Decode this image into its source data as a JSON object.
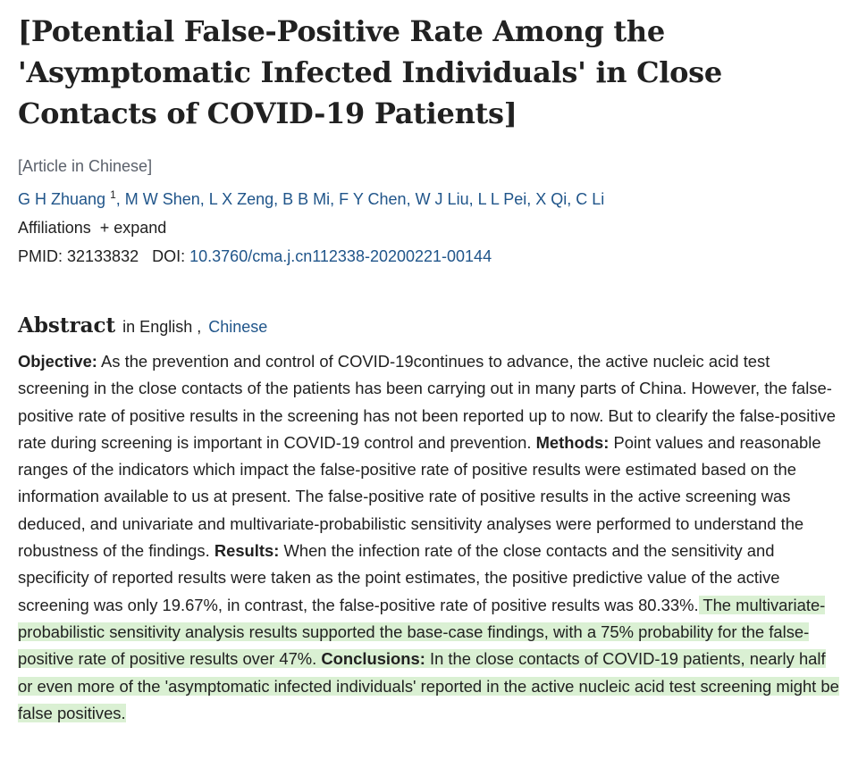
{
  "article": {
    "title": "[Potential False-Positive Rate Among the 'Asymptomatic Infected Individuals' in Close Contacts of COVID-19 Patients]",
    "language_note": "[Article in Chinese]",
    "first_author": "G H Zhuang",
    "first_author_affiliation": "1",
    "other_authors": ", M W Shen, L X Zeng, B B Mi, F Y Chen, W J Liu, L L Pei, X Qi, C Li",
    "affiliations_label": "Affiliations",
    "expand_label": "+ expand",
    "pmid_label": "PMID: 32133832",
    "doi_label": "DOI:",
    "doi": "10.3760/cma.j.cn112338-20200221-00144"
  },
  "abstract": {
    "heading": "Abstract",
    "language_prefix": "in English ,",
    "language_link": "Chinese",
    "objective_label": "Objective:",
    "objective_text": " As the prevention and control of COVID-19continues to advance, the active nucleic acid test screening in the close contacts of the patients has been carrying out in many parts of China. However, the false-positive rate of positive results in the screening has not been reported up to now. But to clearify the false-positive rate during screening is important in COVID-19 control and prevention. ",
    "methods_label": "Methods:",
    "methods_text": " Point values and reasonable ranges of the indicators which impact the false-positive rate of positive results were estimated based on the information available to us at present. The false-positive rate of positive results in the active screening was deduced, and univariate and multivariate-probabilistic sensitivity analyses were performed to understand the robustness of the findings. ",
    "results_label": "Results:",
    "results_text": " When the infection rate of the close contacts and the sensitivity and specificity of reported results were taken as the point estimates, the positive predictive value of the active screening was only 19.67%, in contrast, the false-positive rate of positive results was 80.33%.",
    "results_text_highlighted": " The multivariate-probabilistic sensitivity analysis results supported the base-case findings, with a 75% probability for the false-positive rate of positive results over 47%. ",
    "conclusions_label": "Conclusions:",
    "conclusions_text": " In the close contacts of COVID-19 patients, nearly half or even more of the 'asymptomatic infected individuals' reported in the active nucleic acid test screening might be false positives."
  }
}
